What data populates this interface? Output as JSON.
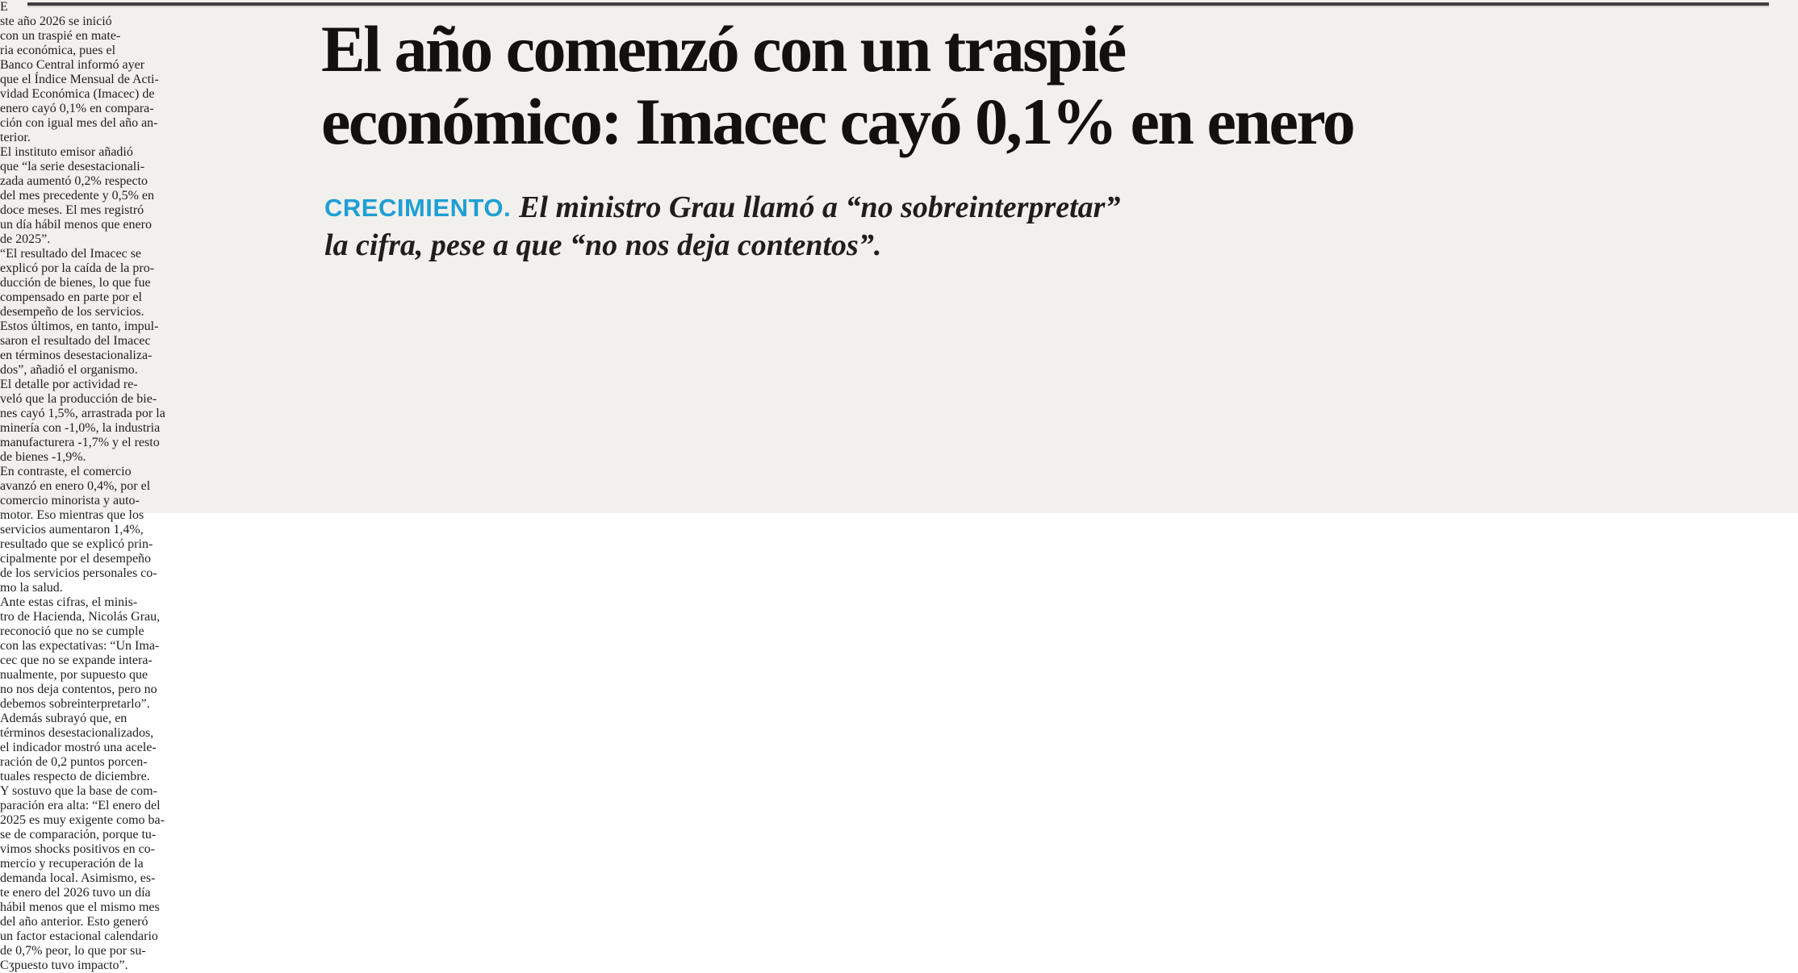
{
  "page": {
    "background": "#f2f0ec",
    "rule_color": "#3f3f3f"
  },
  "headline": {
    "lines": [
      "El año comenzó con un traspié",
      "económico: Imacec cayó 0,1% en enero"
    ]
  },
  "kicker": {
    "label": "CRECIMIENTO.",
    "color": "#1e9fd4"
  },
  "subhead": {
    "lines": [
      "El ministro Grau llamó a “no sobreinterpretar”",
      "la cifra, pese a que “no nos deja contentos”."
    ]
  },
  "end_mark": "Cʒ",
  "columns": {
    "col1": {
      "dropcap": "E",
      "lines": [
        {
          "text": "ste año 2026 se inició"
        },
        {
          "text": "con un traspié en mate-"
        },
        {
          "text": "ria económica, pues el"
        },
        {
          "text": "Banco Central informó ayer"
        },
        {
          "text": "que el Índice Mensual de Acti-"
        },
        {
          "text": "vidad Económica (Imacec) de"
        },
        {
          "text": "enero cayó 0,1% en compara-"
        },
        {
          "text": "ción con igual mes del año an-"
        },
        {
          "text": "terior.",
          "end": true
        },
        {
          "text": "El instituto emisor añadió",
          "indent": true
        },
        {
          "text": "que “la serie desestacionali-"
        },
        {
          "text": "zada aumentó 0,2% respecto"
        },
        {
          "text": "del mes precedente y 0,5% en"
        },
        {
          "text": "doce meses. El mes registró"
        },
        {
          "text": "un día hábil menos que enero"
        },
        {
          "text": "de 2025”.",
          "end": true
        },
        {
          "text": "“El resultado del Imacec se",
          "indent": true
        }
      ]
    },
    "col2": {
      "lines": [
        {
          "text": "explicó por la caída de la pro-"
        },
        {
          "text": "ducción de bienes, lo que fue"
        },
        {
          "text": "compensado en parte por el"
        },
        {
          "text": "desempeño de los servicios."
        },
        {
          "text": "Estos últimos, en tanto, impul-"
        },
        {
          "text": "saron el resultado del Imacec"
        },
        {
          "text": "en términos desestacionaliza-"
        }
      ]
    },
    "col3": {
      "lines": [
        {
          "text": "dos”, añadió el organismo.",
          "end": true
        },
        {
          "text": "El detalle por actividad re-",
          "indent": true
        },
        {
          "text": "veló que la producción de bie-"
        },
        {
          "text": "nes cayó 1,5%, arrastrada por la"
        },
        {
          "text": "minería con -1,0%, la industria"
        },
        {
          "text": "manufacturera -1,7% y el resto"
        },
        {
          "text": "de bienes -1,9%.",
          "end": true
        }
      ]
    },
    "col4": {
      "lines": [
        {
          "text": "En contraste, el comercio",
          "indent": true
        },
        {
          "text": "avanzó en enero 0,4%, por el"
        },
        {
          "text": "comercio minorista y auto-"
        },
        {
          "text": "motor. Eso mientras que los"
        },
        {
          "text": "servicios aumentaron 1,4%,"
        },
        {
          "text": "resultado que se explicó prin-"
        },
        {
          "text": "cipalmente por el desempeño"
        }
      ]
    },
    "col5": {
      "lines": [
        {
          "text": "de los servicios personales co-"
        },
        {
          "text": "mo la salud.",
          "end": true
        },
        {
          "text": "Ante estas cifras, el minis-",
          "indent": true
        },
        {
          "text": "tro de Hacienda, Nicolás Grau,"
        },
        {
          "text": "reconoció que no se cumple"
        },
        {
          "text": "con las expectativas: “Un Ima-"
        },
        {
          "text": "cec que no se expande intera-"
        },
        {
          "text": "nualmente, por supuesto que"
        },
        {
          "text": "no nos deja contentos, pero no"
        },
        {
          "text": "debemos sobreinterpretarlo”.",
          "end": true
        },
        {
          "text": "Además subrayó que, en",
          "indent": true
        }
      ]
    },
    "col6": {
      "lines": [
        {
          "text": "términos desestacionalizados,"
        },
        {
          "text": "el indicador mostró una acele-"
        },
        {
          "text": "ración de 0,2 puntos porcen-"
        },
        {
          "text": "tuales respecto de diciembre."
        },
        {
          "text": "Y sostuvo que la base de com-"
        },
        {
          "text": "paración era alta: “El enero del"
        },
        {
          "text": "2025 es muy exigente como ba-"
        },
        {
          "text": "se de comparación, porque tu-"
        },
        {
          "text": "vimos shocks positivos en co-"
        },
        {
          "text": "mercio y recuperación de la"
        },
        {
          "text": "demanda local. Asimismo, es-"
        },
        {
          "text": "te enero del 2026 tuvo un día"
        },
        {
          "text": "hábil menos que el mismo mes"
        },
        {
          "text": "del año anterior. Esto generó"
        },
        {
          "text": "un factor estacional calendario"
        },
        {
          "text": "de 0,7% peor, lo que por su-"
        },
        {
          "text": "puesto tuvo impacto”.",
          "end": true,
          "mark": true
        }
      ]
    }
  }
}
